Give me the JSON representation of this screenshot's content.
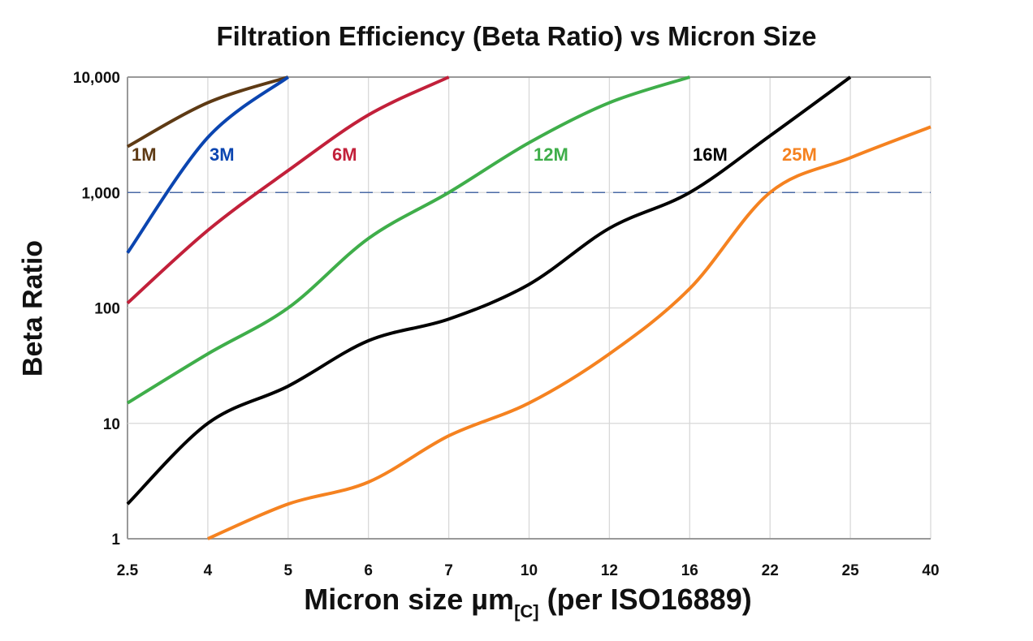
{
  "chart_data": {
    "type": "line",
    "title": "Filtration Efficiency (Beta Ratio) vs Micron Size",
    "xlabel_parts": [
      "Micron size µm",
      "[C]",
      " (per ISO16889)"
    ],
    "ylabel": "Beta Ratio",
    "categories": [
      "2.5",
      "4",
      "5",
      "6",
      "7",
      "10",
      "12",
      "16",
      "22",
      "25",
      "40"
    ],
    "y_scale": "log",
    "ylim": [
      1,
      10000
    ],
    "y_ticks": [
      1,
      10,
      100,
      1000,
      10000
    ],
    "y_tick_labels": [
      "1",
      "10",
      "100",
      "1,000",
      "10,000"
    ],
    "grid": true,
    "reference_line": {
      "y": 1000,
      "style": "dashed",
      "color": "#4a6aa5"
    },
    "series": [
      {
        "name": "1M",
        "color": "#5e3a14",
        "x": [
          "2.5",
          "4",
          "5"
        ],
        "values": [
          2500,
          6000,
          10000
        ]
      },
      {
        "name": "3M",
        "color": "#0b45b0",
        "x": [
          "2.5",
          "4",
          "5"
        ],
        "values": [
          300,
          3000,
          10000
        ]
      },
      {
        "name": "6M",
        "color": "#c2203a",
        "x": [
          "2.5",
          "4",
          "5",
          "6",
          "7"
        ],
        "values": [
          110,
          470,
          1550,
          4700,
          10000
        ]
      },
      {
        "name": "12M",
        "color": "#3fae4a",
        "x": [
          "2.5",
          "4",
          "5",
          "6",
          "7",
          "10",
          "12",
          "16"
        ],
        "values": [
          15,
          40,
          100,
          400,
          1000,
          2700,
          6000,
          10000
        ]
      },
      {
        "name": "16M",
        "color": "#000000",
        "x": [
          "2.5",
          "4",
          "5",
          "6",
          "7",
          "10",
          "12",
          "16",
          "22",
          "25"
        ],
        "values": [
          2,
          10,
          21,
          52,
          80,
          160,
          490,
          1000,
          3100,
          10000
        ]
      },
      {
        "name": "25M",
        "color": "#f58220",
        "x": [
          "4",
          "5",
          "6",
          "7",
          "10",
          "12",
          "16",
          "22",
          "25",
          "40"
        ],
        "values": [
          1,
          2,
          3.1,
          7.8,
          15,
          40,
          147,
          1000,
          2000,
          3700
        ]
      }
    ]
  }
}
